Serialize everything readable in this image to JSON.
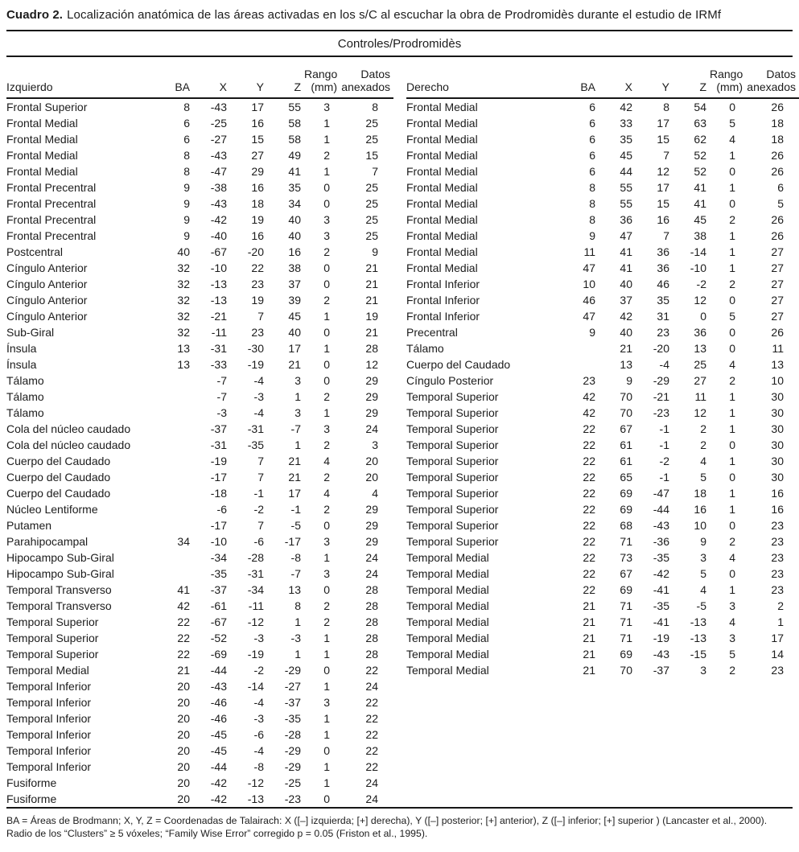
{
  "page": {
    "caption_label": "Cuadro 2.",
    "caption_text": "Localización anatómica de las áreas activadas en los s/C al escuchar la obra de Prodromidès durante el estudio de IRMf",
    "footnote": "BA = Áreas de Brodmann; X, Y, Z = Coordenadas de Talairach: X ([–] izquierda; [+] derecha), Y ([–] posterior; [+] anterior), Z  ([–] inferior; [+] superior ) (Lancaster et al., 2000). Radio de los “Clusters” ≥ 5 vóxeles; “Family Wise Error” corregido p = 0.05 (Friston et al., 1995)."
  },
  "table": {
    "group_header": "Controles/Prodromidès",
    "columns": {
      "ba": "BA",
      "x": "X",
      "y": "Y",
      "z": "Z",
      "rango": [
        "Rango",
        "(mm)"
      ],
      "datos": [
        "Datos",
        "anexados"
      ]
    },
    "left": {
      "region_header": "Izquierdo",
      "rows": [
        [
          "Frontal Superior",
          "8",
          "-43",
          "17",
          "55",
          "3",
          "8"
        ],
        [
          "Frontal Medial",
          "6",
          "-25",
          "16",
          "58",
          "1",
          "25"
        ],
        [
          "Frontal Medial",
          "6",
          "-27",
          "15",
          "58",
          "1",
          "25"
        ],
        [
          "Frontal Medial",
          "8",
          "-43",
          "27",
          "49",
          "2",
          "15"
        ],
        [
          "Frontal Medial",
          "8",
          "-47",
          "29",
          "41",
          "1",
          "7"
        ],
        [
          "Frontal Precentral",
          "9",
          "-38",
          "16",
          "35",
          "0",
          "25"
        ],
        [
          "Frontal Precentral",
          "9",
          "-43",
          "18",
          "34",
          "0",
          "25"
        ],
        [
          "Frontal Precentral",
          "9",
          "-42",
          "19",
          "40",
          "3",
          "25"
        ],
        [
          "Frontal Precentral",
          "9",
          "-40",
          "16",
          "40",
          "3",
          "25"
        ],
        [
          "Postcentral",
          "40",
          "-67",
          "-20",
          "16",
          "2",
          "9"
        ],
        [
          "Cíngulo Anterior",
          "32",
          "-10",
          "22",
          "38",
          "0",
          "21"
        ],
        [
          "Cíngulo Anterior",
          "32",
          "-13",
          "23",
          "37",
          "0",
          "21"
        ],
        [
          "Cíngulo Anterior",
          "32",
          "-13",
          "19",
          "39",
          "2",
          "21"
        ],
        [
          "Cíngulo Anterior",
          "32",
          "-21",
          "7",
          "45",
          "1",
          "19"
        ],
        [
          "Sub-Giral",
          "32",
          "-11",
          "23",
          "40",
          "0",
          "21"
        ],
        [
          "Ínsula",
          "13",
          "-31",
          "-30",
          "17",
          "1",
          "28"
        ],
        [
          "Ínsula",
          "13",
          "-33",
          "-19",
          "21",
          "0",
          "12"
        ],
        [
          "Tálamo",
          "",
          "-7",
          "-4",
          "3",
          "0",
          "29"
        ],
        [
          "Tálamo",
          "",
          "-7",
          "-3",
          "1",
          "2",
          "29"
        ],
        [
          "Tálamo",
          "",
          "-3",
          "-4",
          "3",
          "1",
          "29"
        ],
        [
          "Cola del núcleo caudado",
          "",
          "-37",
          "-31",
          "-7",
          "3",
          "24"
        ],
        [
          "Cola del núcleo caudado",
          "",
          "-31",
          "-35",
          "1",
          "2",
          "3"
        ],
        [
          "Cuerpo del Caudado",
          "",
          "-19",
          "7",
          "21",
          "4",
          "20"
        ],
        [
          "Cuerpo del Caudado",
          "",
          "-17",
          "7",
          "21",
          "2",
          "20"
        ],
        [
          "Cuerpo del Caudado",
          "",
          "-18",
          "-1",
          "17",
          "4",
          "4"
        ],
        [
          "Núcleo Lentiforme",
          "",
          "-6",
          "-2",
          "-1",
          "2",
          "29"
        ],
        [
          "Putamen",
          "",
          "-17",
          "7",
          "-5",
          "0",
          "29"
        ],
        [
          "Parahipocampal",
          "34",
          "-10",
          "-6",
          "-17",
          "3",
          "29"
        ],
        [
          "Hipocampo Sub-Giral",
          "",
          "-34",
          "-28",
          "-8",
          "1",
          "24"
        ],
        [
          "Hipocampo Sub-Giral",
          "",
          "-35",
          "-31",
          "-7",
          "3",
          "24"
        ],
        [
          "Temporal Transverso",
          "41",
          "-37",
          "-34",
          "13",
          "0",
          "28"
        ],
        [
          "Temporal Transverso",
          "42",
          "-61",
          "-11",
          "8",
          "2",
          "28"
        ],
        [
          "Temporal  Superior",
          "22",
          "-67",
          "-12",
          "1",
          "2",
          "28"
        ],
        [
          "Temporal  Superior",
          "22",
          "-52",
          "-3",
          "-3",
          "1",
          "28"
        ],
        [
          "Temporal  Superior",
          "22",
          "-69",
          "-19",
          "1",
          "1",
          "28"
        ],
        [
          "Temporal Medial",
          "21",
          "-44",
          "-2",
          "-29",
          "0",
          "22"
        ],
        [
          "Temporal Inferior",
          "20",
          "-43",
          "-14",
          "-27",
          "1",
          "24"
        ],
        [
          "Temporal Inferior",
          "20",
          "-46",
          "-4",
          "-37",
          "3",
          "22"
        ],
        [
          "Temporal Inferior",
          "20",
          "-46",
          "-3",
          "-35",
          "1",
          "22"
        ],
        [
          "Temporal Inferior",
          "20",
          "-45",
          "-6",
          "-28",
          "1",
          "22"
        ],
        [
          "Temporal Inferior",
          "20",
          "-45",
          "-4",
          "-29",
          "0",
          "22"
        ],
        [
          "Temporal Inferior",
          "20",
          "-44",
          "-8",
          "-29",
          "1",
          "22"
        ],
        [
          "Fusiforme",
          "20",
          "-42",
          "-12",
          "-25",
          "1",
          "24"
        ],
        [
          "Fusiforme",
          "20",
          "-42",
          "-13",
          "-23",
          "0",
          "24"
        ]
      ]
    },
    "right": {
      "region_header": "Derecho",
      "rows": [
        [
          "Frontal Medial",
          "6",
          "42",
          "8",
          "54",
          "0",
          "26"
        ],
        [
          "Frontal Medial",
          "6",
          "33",
          "17",
          "63",
          "5",
          "18"
        ],
        [
          "Frontal Medial",
          "6",
          "35",
          "15",
          "62",
          "4",
          "18"
        ],
        [
          "Frontal Medial",
          "6",
          "45",
          "7",
          "52",
          "1",
          "26"
        ],
        [
          "Frontal Medial",
          "6",
          "44",
          "12",
          "52",
          "0",
          "26"
        ],
        [
          "Frontal Medial",
          "8",
          "55",
          "17",
          "41",
          "1",
          "6"
        ],
        [
          "Frontal Medial",
          "8",
          "55",
          "15",
          "41",
          "0",
          "5"
        ],
        [
          "Frontal Medial",
          "8",
          "36",
          "16",
          "45",
          "2",
          "26"
        ],
        [
          "Frontal Medial",
          "9",
          "47",
          "7",
          "38",
          "1",
          "26"
        ],
        [
          "Frontal Medial",
          "11",
          "41",
          "36",
          "-14",
          "1",
          "27"
        ],
        [
          "Frontal Medial",
          "47",
          "41",
          "36",
          "-10",
          "1",
          "27"
        ],
        [
          "Frontal Inferior",
          "10",
          "40",
          "46",
          "-2",
          "2",
          "27"
        ],
        [
          "Frontal Inferior",
          "46",
          "37",
          "35",
          "12",
          "0",
          "27"
        ],
        [
          "Frontal Inferior",
          "47",
          "42",
          "31",
          "0",
          "5",
          "27"
        ],
        [
          "Precentral",
          "9",
          "40",
          "23",
          "36",
          "0",
          "26"
        ],
        [
          "Tálamo",
          "",
          "21",
          "-20",
          "13",
          "0",
          "11"
        ],
        [
          "Cuerpo del Caudado",
          "",
          "13",
          "-4",
          "25",
          "4",
          "13"
        ],
        [
          "Cíngulo Posterior",
          "23",
          "9",
          "-29",
          "27",
          "2",
          "10"
        ],
        [
          "Temporal  Superior",
          "42",
          "70",
          "-21",
          "11",
          "1",
          "30"
        ],
        [
          "Temporal  Superior",
          "42",
          "70",
          "-23",
          "12",
          "1",
          "30"
        ],
        [
          "Temporal  Superior",
          "22",
          "67",
          "-1",
          "2",
          "1",
          "30"
        ],
        [
          "Temporal  Superior",
          "22",
          "61",
          "-1",
          "2",
          "0",
          "30"
        ],
        [
          "Temporal  Superior",
          "22",
          "61",
          "-2",
          "4",
          "1",
          "30"
        ],
        [
          "Temporal  Superior",
          "22",
          "65",
          "-1",
          "5",
          "0",
          "30"
        ],
        [
          "Temporal  Superior",
          "22",
          "69",
          "-47",
          "18",
          "1",
          "16"
        ],
        [
          "Temporal  Superior",
          "22",
          "69",
          "-44",
          "16",
          "1",
          "16"
        ],
        [
          "Temporal  Superior",
          "22",
          "68",
          "-43",
          "10",
          "0",
          "23"
        ],
        [
          "Temporal  Superior",
          "22",
          "71",
          "-36",
          "9",
          "2",
          "23"
        ],
        [
          "Temporal Medial",
          "22",
          "73",
          "-35",
          "3",
          "4",
          "23"
        ],
        [
          "Temporal Medial",
          "22",
          "67",
          "-42",
          "5",
          "0",
          "23"
        ],
        [
          "Temporal Medial",
          "22",
          "69",
          "-41",
          "4",
          "1",
          "23"
        ],
        [
          "Temporal Medial",
          "21",
          "71",
          "-35",
          "-5",
          "3",
          "2"
        ],
        [
          "Temporal Medial",
          "21",
          "71",
          "-41",
          "-13",
          "4",
          "1"
        ],
        [
          "Temporal Medial",
          "21",
          "71",
          "-19",
          "-13",
          "3",
          "17"
        ],
        [
          "Temporal Medial",
          "21",
          "69",
          "-43",
          "-15",
          "5",
          "14"
        ],
        [
          "Temporal Medial",
          "21",
          "70",
          "-37",
          "3",
          "2",
          "23"
        ]
      ]
    }
  }
}
